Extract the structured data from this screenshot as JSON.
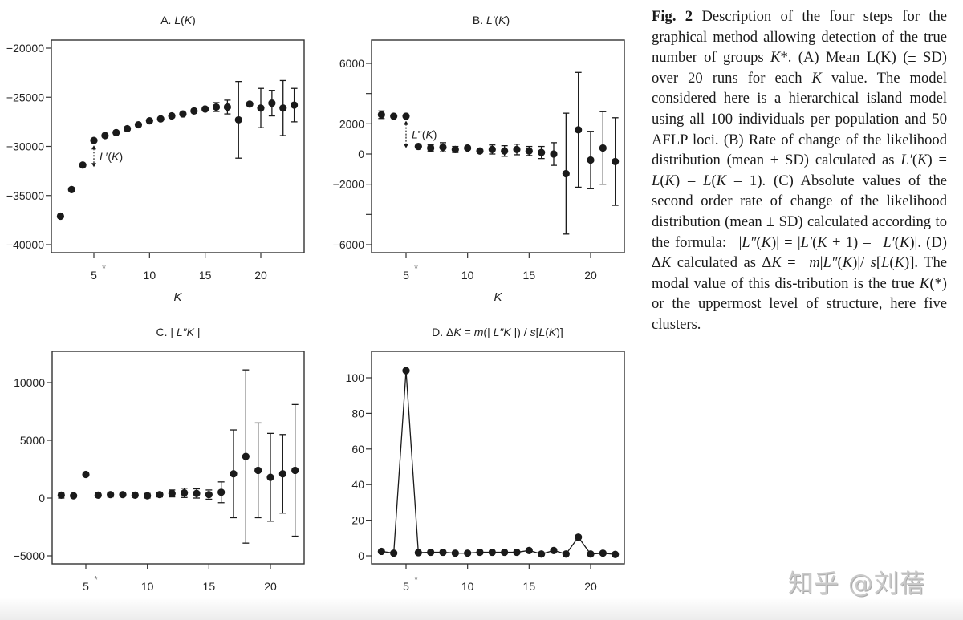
{
  "chart_data": [
    {
      "type": "scatter",
      "panel": "A",
      "title": [
        {
          "t": "A. "
        },
        {
          "t": "L",
          "i": true
        },
        {
          "t": "("
        },
        {
          "t": "K",
          "i": true
        },
        {
          "t": ")"
        }
      ],
      "xlabel": "K",
      "ylabel": "",
      "xticks": [
        5,
        10,
        15,
        20
      ],
      "xtick_labels": [
        "5",
        "10",
        "15",
        "20"
      ],
      "star_tick": "*",
      "yticks": [
        -20000,
        -25000,
        -30000,
        -35000,
        -40000
      ],
      "ytick_labels": [
        "−20000",
        "−25000",
        "−30000",
        "−35000",
        "−40000"
      ],
      "error_bars": "SD",
      "x": [
        2,
        3,
        4,
        5,
        6,
        7,
        8,
        9,
        10,
        11,
        12,
        13,
        14,
        15,
        16,
        17,
        18,
        19,
        20,
        21,
        22,
        23
      ],
      "y": [
        -37100,
        -34400,
        -31900,
        -29400,
        -28900,
        -28600,
        -28200,
        -27800,
        -27400,
        -27200,
        -26900,
        -26700,
        -26400,
        -26200,
        -26000,
        -26000,
        -27300,
        -25700,
        -26100,
        -25600,
        -26100,
        -25800
      ],
      "sd": [
        100,
        100,
        100,
        100,
        100,
        100,
        100,
        100,
        100,
        100,
        100,
        100,
        100,
        100,
        450,
        700,
        3900,
        100,
        2000,
        1300,
        2800,
        1700
      ],
      "annotation": {
        "k": 5,
        "from": -29900,
        "to": -32100,
        "label": [
          {
            "t": "L",
            "i": true
          },
          {
            "t": "′("
          },
          {
            "t": "K",
            "i": true
          },
          {
            "t": ")"
          }
        ]
      }
    },
    {
      "type": "scatter",
      "panel": "B",
      "title": [
        {
          "t": "B. "
        },
        {
          "t": "L′",
          "i": true
        },
        {
          "t": "("
        },
        {
          "t": "K",
          "i": true
        },
        {
          "t": ")"
        }
      ],
      "xlabel": "K",
      "ylabel": "",
      "xticks": [
        5,
        10,
        15,
        20
      ],
      "xtick_labels": [
        "5",
        "10",
        "15",
        "20"
      ],
      "star_tick": "*",
      "yticks": [
        6000,
        4000,
        2000,
        0,
        -2000,
        -4000,
        -6000
      ],
      "ytick_labels": [
        "6000",
        "",
        "2000",
        "0",
        "−2000",
        "",
        "−6000"
      ],
      "error_bars": "SD",
      "x": [
        3,
        4,
        5,
        6,
        7,
        8,
        9,
        10,
        11,
        12,
        13,
        14,
        15,
        16,
        17,
        18,
        19,
        20,
        21,
        22
      ],
      "y": [
        2600,
        2500,
        2500,
        500,
        400,
        450,
        300,
        400,
        200,
        300,
        200,
        300,
        200,
        100,
        0,
        -1300,
        1600,
        -400,
        400,
        -500
      ],
      "sd": [
        250,
        100,
        100,
        100,
        200,
        300,
        200,
        150,
        150,
        300,
        350,
        350,
        300,
        400,
        750,
        4000,
        3800,
        1900,
        2400,
        2900
      ],
      "annotation": {
        "k": 5,
        "from": 2200,
        "to": 400,
        "label": [
          {
            "t": "L",
            "i": true
          },
          {
            "t": "\"("
          },
          {
            "t": "K",
            "i": true
          },
          {
            "t": ")"
          }
        ]
      }
    },
    {
      "type": "scatter",
      "panel": "C",
      "title": [
        {
          "t": "C. | "
        },
        {
          "t": "L″K",
          "i": true
        },
        {
          "t": " |"
        }
      ],
      "xlabel": "K",
      "ylabel": "",
      "xticks": [
        5,
        10,
        15,
        20
      ],
      "xtick_labels": [
        "5",
        "10",
        "15",
        "20"
      ],
      "star_tick": "*",
      "yticks": [
        10000,
        5000,
        0,
        -5000
      ],
      "ytick_labels": [
        "10000",
        "5000",
        "0",
        "−5000"
      ],
      "error_bars": "SD",
      "x": [
        3,
        4,
        5,
        6,
        7,
        8,
        9,
        10,
        11,
        12,
        13,
        14,
        15,
        16,
        17,
        18,
        19,
        20,
        21,
        22
      ],
      "y": [
        250,
        200,
        2050,
        250,
        300,
        300,
        250,
        200,
        300,
        400,
        450,
        400,
        300,
        500,
        2100,
        3600,
        2400,
        1800,
        2100,
        2400
      ],
      "sd": [
        250,
        100,
        100,
        100,
        200,
        150,
        100,
        200,
        200,
        300,
        400,
        400,
        400,
        900,
        3800,
        7500,
        4100,
        3800,
        3400,
        5700
      ]
    },
    {
      "type": "line",
      "panel": "D",
      "title": [
        {
          "t": "D. Δ"
        },
        {
          "t": "K",
          "i": true
        },
        {
          "t": " = "
        },
        {
          "t": "m",
          "i": true
        },
        {
          "t": "(| "
        },
        {
          "t": "L″K",
          "i": true
        },
        {
          "t": " |) / "
        },
        {
          "t": "s",
          "i": true
        },
        {
          "t": "["
        },
        {
          "t": "L",
          "i": true
        },
        {
          "t": "("
        },
        {
          "t": "K",
          "i": true
        },
        {
          "t": ")]"
        }
      ],
      "xlabel": "K",
      "ylabel": "",
      "xticks": [
        5,
        10,
        15,
        20
      ],
      "xtick_labels": [
        "5",
        "10",
        "15",
        "20"
      ],
      "star_tick": "*",
      "yticks": [
        100,
        80,
        60,
        40,
        20,
        0
      ],
      "ytick_labels": [
        "100",
        "80",
        "60",
        "40",
        "20",
        "0"
      ],
      "x": [
        3,
        4,
        5,
        6,
        7,
        8,
        9,
        10,
        11,
        12,
        13,
        14,
        15,
        16,
        17,
        18,
        19,
        20,
        21,
        22
      ],
      "y": [
        2.5,
        1.5,
        104,
        1.8,
        2,
        2,
        1.5,
        1.5,
        2,
        2,
        2,
        2,
        3,
        1,
        3,
        1,
        10.5,
        1,
        1.5,
        0.8
      ]
    }
  ],
  "caption": [
    {
      "t": "Fig. 2",
      "b": true
    },
    {
      "t": "  Description of the four steps for the graphical method allowing detection of the true number of groups "
    },
    {
      "t": "K",
      "i": true
    },
    {
      "t": "*. (A) Mean L(K) (± SD) over 20 runs for each "
    },
    {
      "t": "K",
      "i": true
    },
    {
      "t": " value. The model considered here is a hierarchical island model using all 100 individuals per population and 50 AFLP loci. (B) Rate of change of the likelihood distribution (mean ± SD) calculated as "
    },
    {
      "t": "L′",
      "i": true
    },
    {
      "t": "("
    },
    {
      "t": "K",
      "i": true
    },
    {
      "t": ") = "
    },
    {
      "t": "L",
      "i": true
    },
    {
      "t": "("
    },
    {
      "t": "K",
      "i": true
    },
    {
      "t": ") – "
    },
    {
      "t": "L",
      "i": true
    },
    {
      "t": "("
    },
    {
      "t": "K",
      "i": true
    },
    {
      "t": " – 1). (C) Absolute values of the second order rate of change of the likelihood distribution (mean ± SD) calculated according to the formula:  |"
    },
    {
      "t": "L″",
      "i": true
    },
    {
      "t": "("
    },
    {
      "t": "K",
      "i": true
    },
    {
      "t": ")| = |"
    },
    {
      "t": "L′",
      "i": true
    },
    {
      "t": "("
    },
    {
      "t": "K",
      "i": true
    },
    {
      "t": " + 1) –  "
    },
    {
      "t": "L′",
      "i": true
    },
    {
      "t": "("
    },
    {
      "t": "K",
      "i": true
    },
    {
      "t": ")|. (D) Δ"
    },
    {
      "t": "K",
      "i": true
    },
    {
      "t": " calculated as Δ"
    },
    {
      "t": "K",
      "i": true
    },
    {
      "t": " =  "
    },
    {
      "t": "m",
      "i": true
    },
    {
      "t": "|"
    },
    {
      "t": "L″",
      "i": true
    },
    {
      "t": "("
    },
    {
      "t": "K",
      "i": true
    },
    {
      "t": ")|/ "
    },
    {
      "t": "s",
      "i": true
    },
    {
      "t": "["
    },
    {
      "t": "L",
      "i": true
    },
    {
      "t": "("
    },
    {
      "t": "K",
      "i": true
    },
    {
      "t": ")]. The modal value of this dis-tribution is the true "
    },
    {
      "t": "K",
      "i": true
    },
    {
      "t": "(*) or the uppermost level of structure, here five clusters."
    }
  ],
  "watermark": "知乎 @刘蓓",
  "colors": {
    "marker": "#1a1a1a",
    "frame": "#333333",
    "star": "#888888",
    "text": "#222222"
  }
}
